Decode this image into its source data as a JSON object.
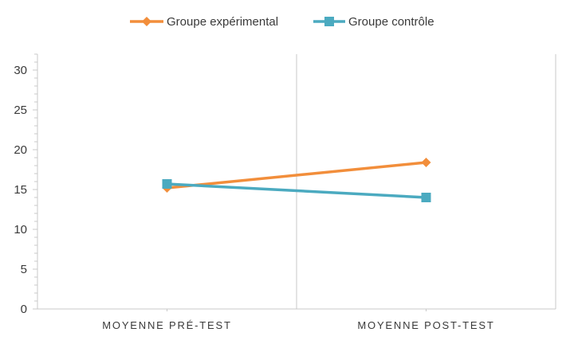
{
  "chart_data": {
    "type": "line",
    "categories": [
      "MOYENNE PRÉ-TEST",
      "MOYENNE POST-TEST"
    ],
    "series": [
      {
        "name": "Groupe expérimental",
        "values": [
          15.2,
          18.4
        ],
        "color": "#F28E3B",
        "marker": "diamond"
      },
      {
        "name": "Groupe contrôle",
        "values": [
          15.7,
          14.0
        ],
        "color": "#4BAAC0",
        "marker": "square"
      }
    ],
    "title": "",
    "xlabel": "",
    "ylabel": "",
    "ylim": [
      0,
      32
    ],
    "yticks": [
      0,
      5,
      10,
      15,
      20,
      25,
      30
    ],
    "legend_position": "top-center",
    "grid": false
  }
}
